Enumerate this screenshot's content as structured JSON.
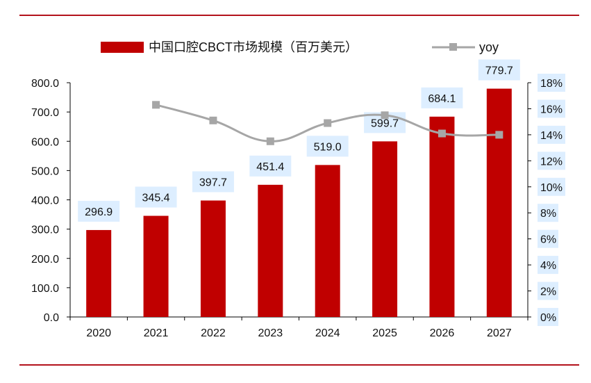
{
  "colors": {
    "bar": "#c00000",
    "line": "#a6a6a6",
    "rule": "#b3121b",
    "label_bg": "#ddeeff",
    "axis": "#000000"
  },
  "chart_data": {
    "type": "bar",
    "title": "",
    "categories": [
      "2020",
      "2021",
      "2022",
      "2023",
      "2024",
      "2025",
      "2026",
      "2027"
    ],
    "series": [
      {
        "name": "中国口腔CBCT市场规模（百万美元）",
        "type": "bar",
        "axis": "left",
        "values": [
          296.9,
          345.4,
          397.7,
          451.4,
          519.0,
          599.7,
          684.1,
          779.7
        ],
        "labels": [
          "296.9",
          "345.4",
          "397.7",
          "451.4",
          "519.0",
          "599.7",
          "684.1",
          "779.7"
        ]
      },
      {
        "name": "yoy",
        "type": "line",
        "axis": "right",
        "marker": "square",
        "smooth": true,
        "values": [
          null,
          16.3,
          15.1,
          13.5,
          14.9,
          15.5,
          14.1,
          14.0
        ]
      }
    ],
    "y_left": {
      "min": 0,
      "max": 800,
      "ticks": [
        "0.0",
        "100.0",
        "200.0",
        "300.0",
        "400.0",
        "500.0",
        "600.0",
        "700.0",
        "800.0"
      ]
    },
    "y_right": {
      "min": 0,
      "max": 18,
      "unit": "%",
      "ticks": [
        "0%",
        "2%",
        "4%",
        "6%",
        "8%",
        "10%",
        "12%",
        "14%",
        "16%",
        "18%"
      ]
    },
    "grid": false,
    "legend_position": "top"
  }
}
